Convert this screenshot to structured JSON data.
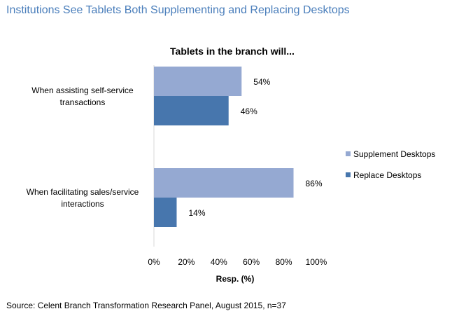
{
  "page": {
    "title": "Institutions See Tablets Both Supplementing and Replacing Desktops",
    "source": "Source: Celent Branch Transformation Research Panel, August 2015, n=37"
  },
  "chart_data": {
    "type": "bar",
    "orientation": "horizontal",
    "title": "Tablets in the branch will...",
    "xlabel": "Resp. (%)",
    "ylabel": "",
    "xlim": [
      0,
      100
    ],
    "x_ticks": [
      "0%",
      "20%",
      "40%",
      "60%",
      "80%",
      "100%"
    ],
    "categories": [
      [
        "When assisting self-service",
        "transactions"
      ],
      [
        "When facilitating sales/service",
        "interactions"
      ]
    ],
    "series": [
      {
        "name": "Supplement Desktops",
        "color": "#95a9d2",
        "values": [
          54,
          86
        ],
        "labels": [
          "54%",
          "86%"
        ]
      },
      {
        "name": "Replace Desktops",
        "color": "#4776ad",
        "values": [
          46,
          14
        ],
        "labels": [
          "46%",
          "14%"
        ]
      }
    ],
    "grid": false,
    "legend_position": "right"
  }
}
